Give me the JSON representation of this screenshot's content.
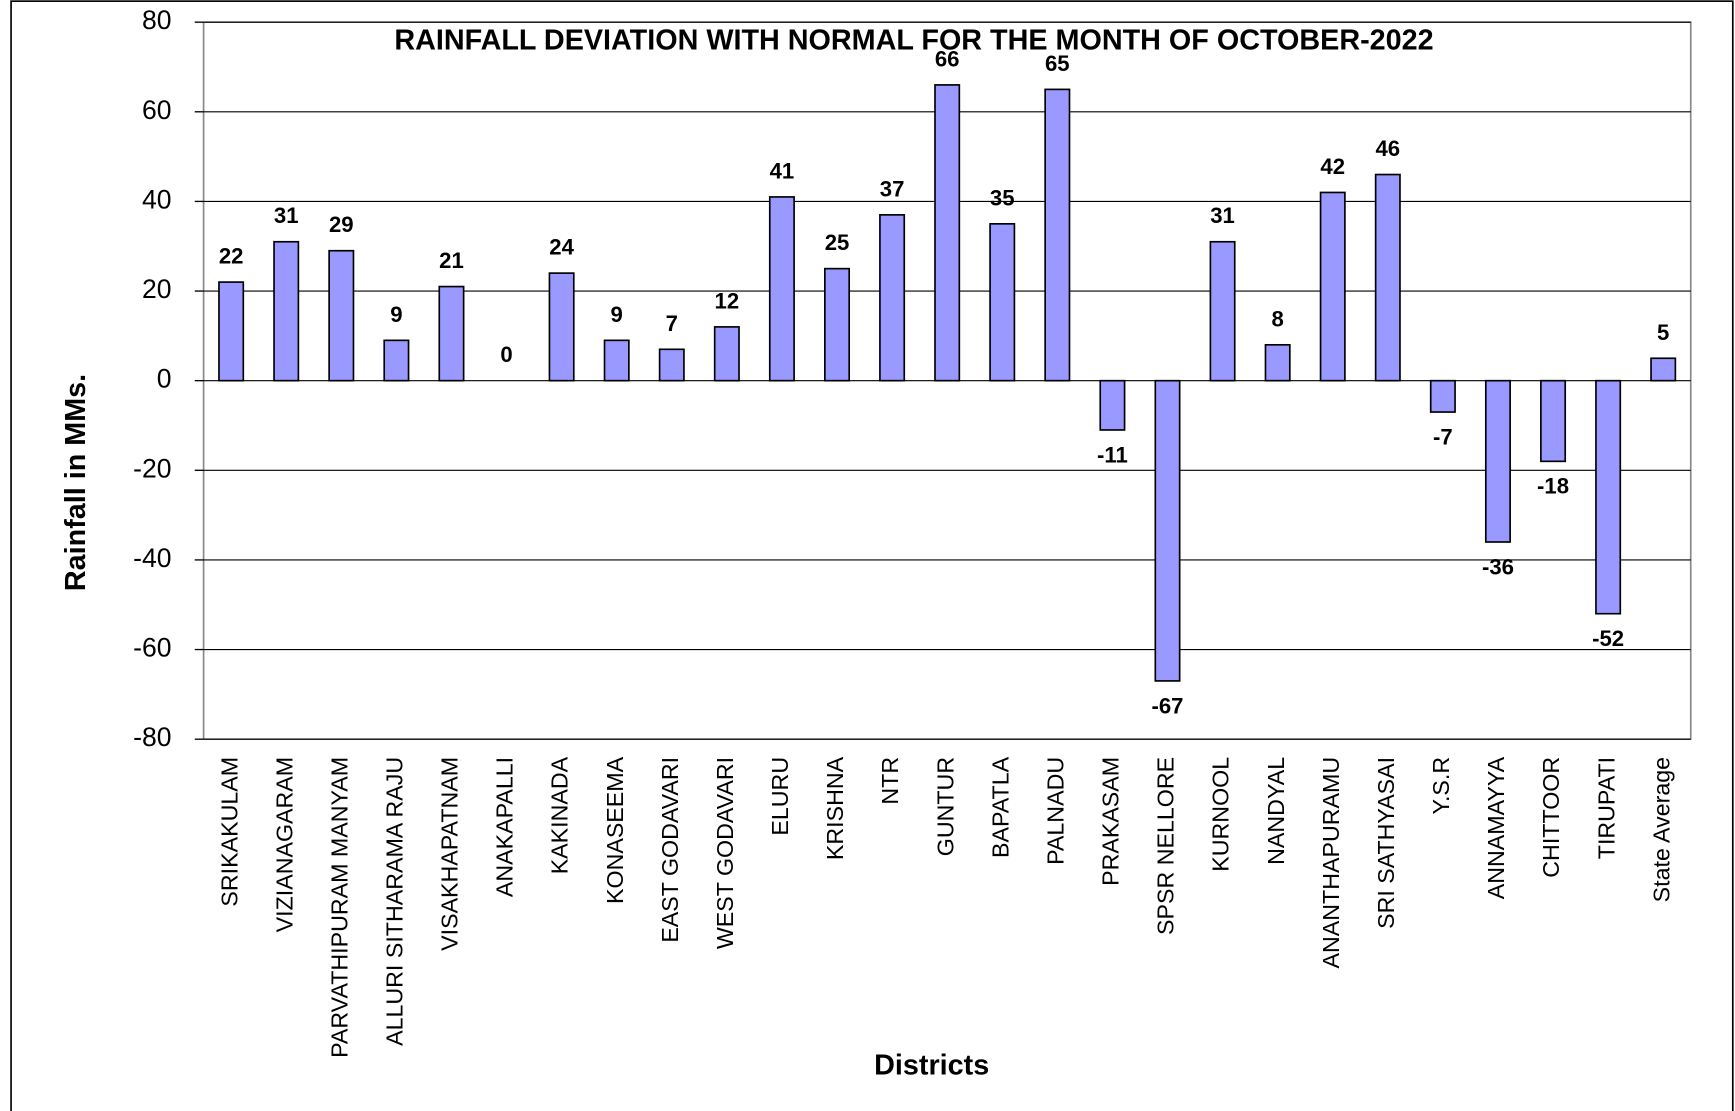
{
  "chart_data": {
    "type": "bar",
    "title": "RAINFALL DEVIATION WITH NORMAL FOR THE MONTH OF OCTOBER-2022",
    "x_label": "Districts",
    "y_label": "Rainfall in MMs.",
    "categories": [
      "SRIKAKULAM",
      "VIZIANAGARAM",
      "PARVATHIPURAM MANYAM",
      "ALLURI SITHARAMA RAJU",
      "VISAKHAPATNAM",
      "ANAKAPALLI",
      "KAKINADA",
      "KONASEEMA",
      "EAST GODAVARI",
      "WEST GODAVARI",
      "ELURU",
      "KRISHNA",
      "NTR",
      "GUNTUR",
      "BAPATLA",
      "PALNADU",
      "PRAKASAM",
      "SPSR NELLORE",
      "KURNOOL",
      "NANDYAL",
      "ANANTHAPURAMU",
      "SRI SATHYASAI",
      "Y.S.R",
      "ANNAMAYYA",
      "CHITTOOR",
      "TIRUPATI",
      "State Average"
    ],
    "values": [
      22,
      31,
      29,
      9,
      21,
      0,
      24,
      9,
      7,
      12,
      41,
      25,
      37,
      66,
      35,
      65,
      -11,
      -67,
      31,
      8,
      42,
      46,
      -7,
      -36,
      -18,
      -52,
      5
    ],
    "color": "#9999ff",
    "ylim": [
      -80,
      80
    ],
    "yticks": [
      -80,
      -60,
      -40,
      -20,
      0,
      20,
      40,
      60,
      80
    ],
    "grid": true
  }
}
